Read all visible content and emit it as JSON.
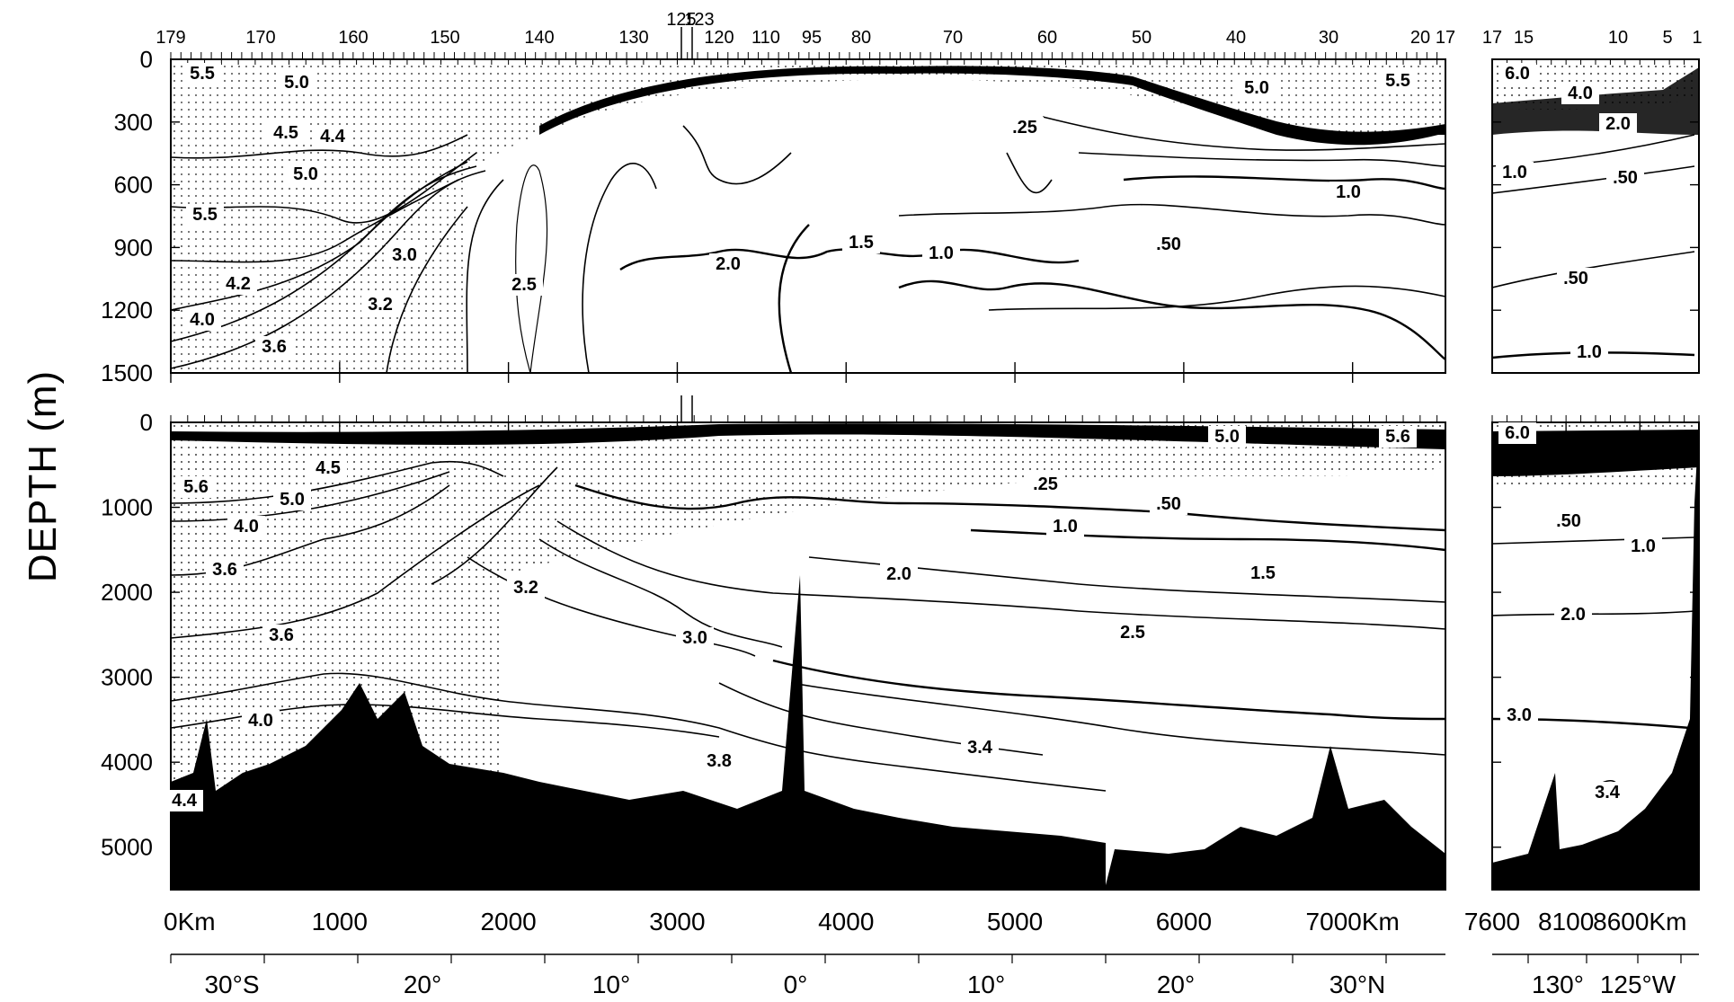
{
  "chart_data": {
    "type": "contour section",
    "ylabel": "DEPTH (m)",
    "station_numbers": {
      "main": [
        "179",
        "170",
        "160",
        "150",
        "140",
        "130",
        "125",
        "123",
        "120",
        "110",
        "95",
        "80",
        "70",
        "60",
        "50",
        "40",
        "30",
        "20",
        "17"
      ],
      "side": [
        "17",
        "15",
        "10",
        "5",
        "1"
      ]
    },
    "upper_panel": {
      "ylim": [
        0,
        1500
      ],
      "y_ticks": [
        "0",
        "300",
        "600",
        "900",
        "1200",
        "1500"
      ],
      "contour_labels": [
        "5.5",
        "5.0",
        "4.5",
        "4.4",
        "5.0",
        "5.5",
        "4.2",
        "4.0",
        "3.6",
        "3.2",
        "3.0",
        "2.5",
        "2.0",
        "1.5",
        ".25",
        "1.0",
        "1.0",
        ".50",
        "5.0",
        "5.5"
      ],
      "side_contour_labels": [
        "6.0",
        "4.0",
        "2.0",
        "1.0",
        ".50",
        ".50",
        "1.0"
      ]
    },
    "lower_panel": {
      "ylim": [
        0,
        5500
      ],
      "y_ticks": [
        "0",
        "1000",
        "2000",
        "3000",
        "4000",
        "5000"
      ],
      "contour_labels": [
        "4.5",
        "5.6",
        "5.0",
        "4.0",
        "3.6",
        "3.6",
        "4.0",
        "4.4",
        "3.2",
        "3.0",
        "3.8",
        "2.0",
        "3.4",
        "2.5",
        ".25",
        ".50",
        "1.0",
        "1.5",
        "5.0",
        "5.6"
      ],
      "side_contour_labels": [
        "6.0",
        ".50",
        "1.0",
        "2.0",
        "3.0",
        "3.4"
      ]
    },
    "x_axis_main": {
      "unit": "Km",
      "xlim": [
        0,
        7550
      ],
      "ticks": [
        "0Km",
        "1000",
        "2000",
        "3000",
        "4000",
        "5000",
        "6000",
        "7000Km"
      ]
    },
    "x_axis_side": {
      "xlim": [
        7600,
        9000
      ],
      "ticks": [
        "7600",
        "8100",
        "8600Km"
      ]
    },
    "latitude_axis": [
      "30°S",
      "20°",
      "10°",
      "0°",
      "10°",
      "20°",
      "30°N"
    ],
    "longitude_axis": [
      "130°",
      "125°W"
    ]
  }
}
